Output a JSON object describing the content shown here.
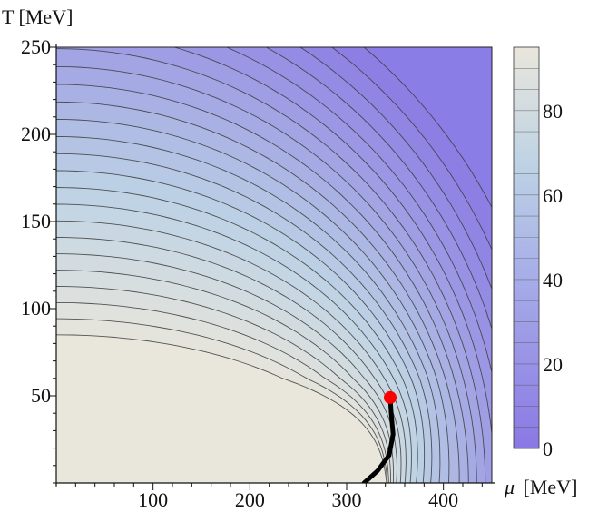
{
  "chart_data": {
    "type": "contour",
    "xlabel_prefix": "μ",
    "xlabel_unit": "[MeV]",
    "ylabel": "T [MeV]",
    "xlim": [
      0,
      450
    ],
    "ylim": [
      0,
      250
    ],
    "x_ticks": [
      100,
      200,
      300,
      400
    ],
    "y_ticks": [
      50,
      100,
      150,
      200,
      250
    ],
    "colorbar": {
      "range": [
        0,
        95
      ],
      "ticks": [
        0,
        20,
        40,
        60,
        80
      ],
      "low_color": "#8a78e4",
      "mid_color": "#bcd2e4",
      "high_color": "#e9e6dc"
    },
    "critical_point": {
      "mu": 345,
      "T": 49,
      "color": "#ff0000"
    },
    "transition_line": [
      [
        318,
        0
      ],
      [
        332,
        7
      ],
      [
        344,
        16
      ],
      [
        348,
        28
      ],
      [
        346,
        40
      ],
      [
        345,
        49
      ]
    ],
    "contour_levels": 24
  }
}
